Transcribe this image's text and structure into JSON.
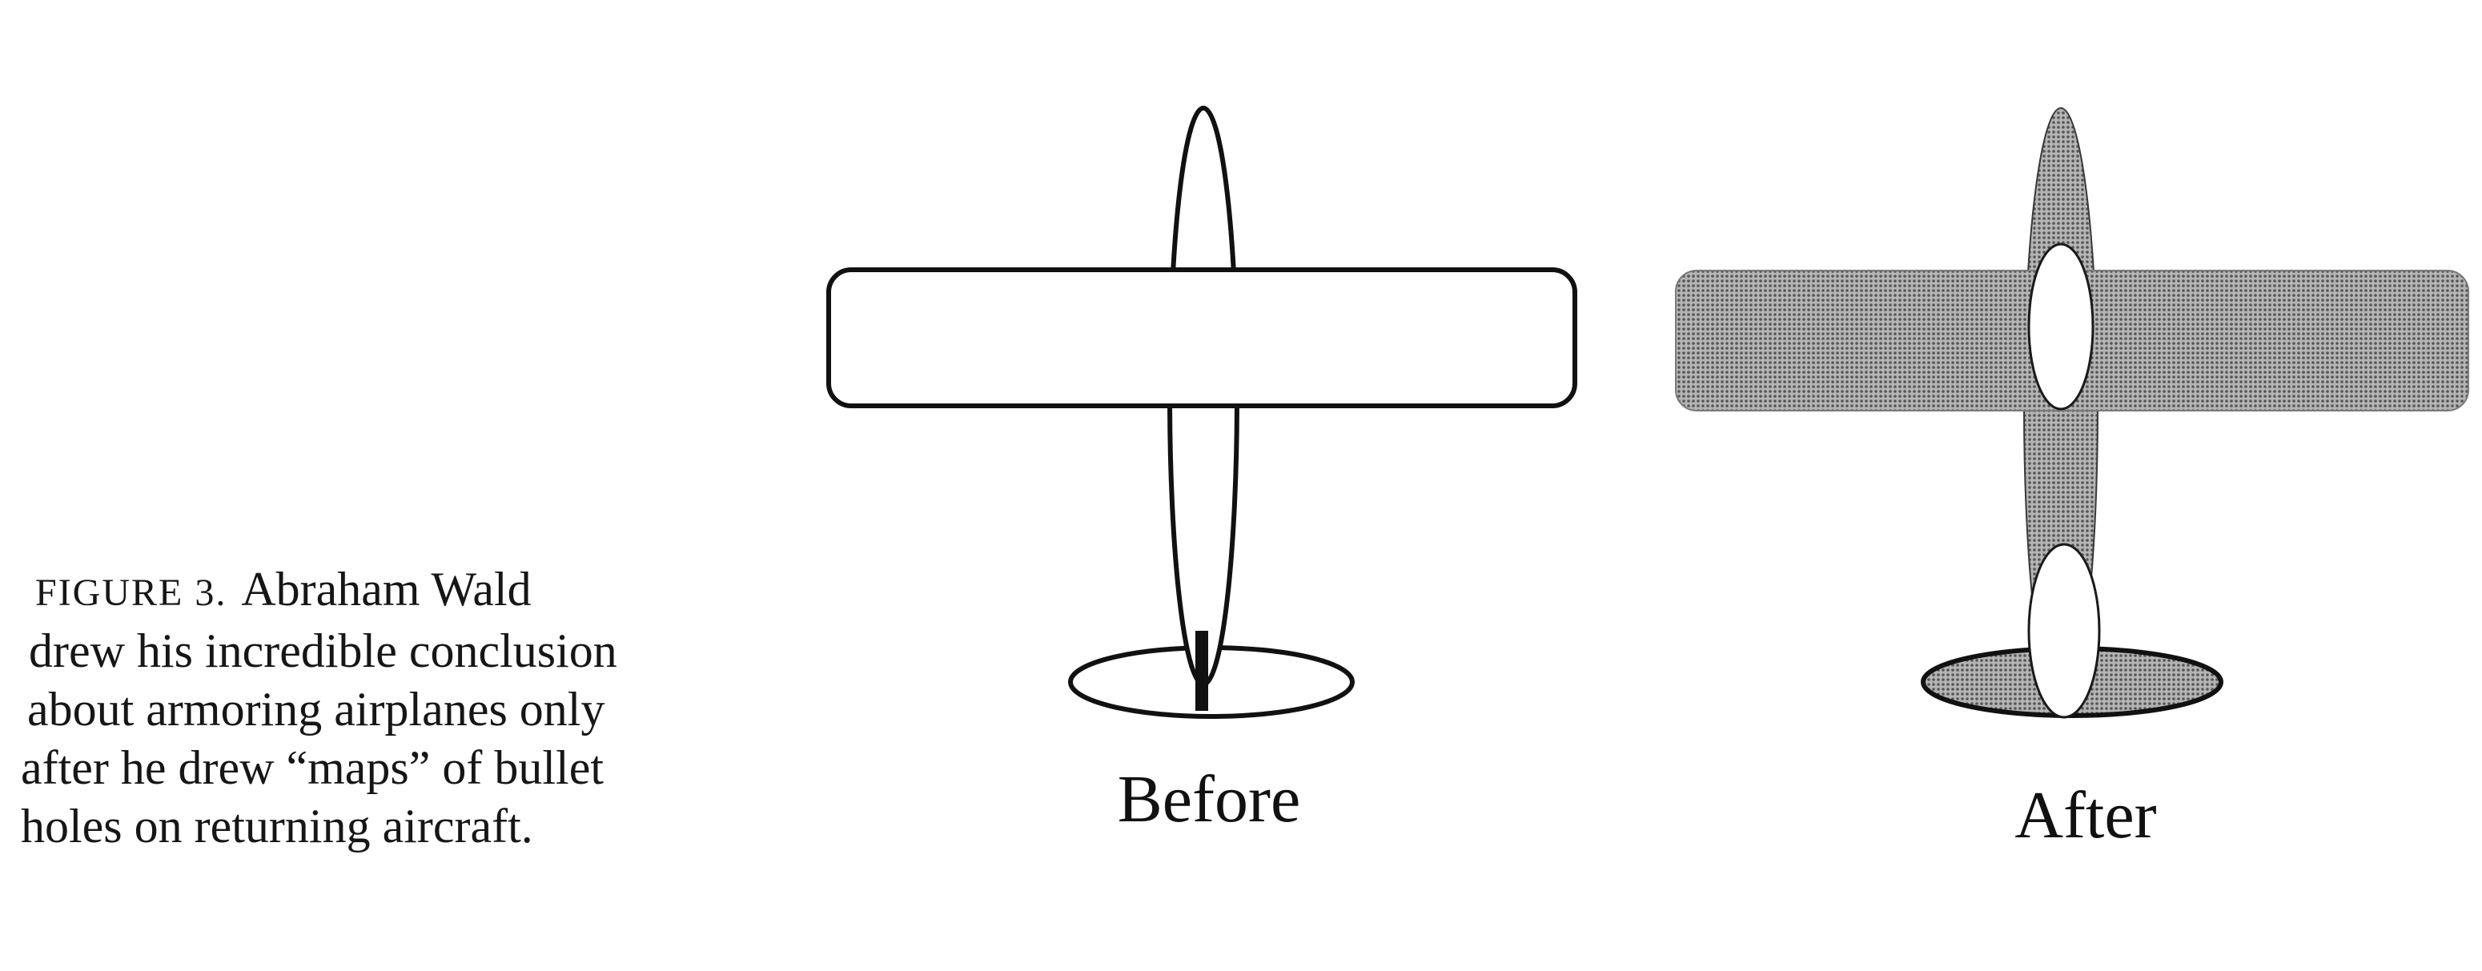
{
  "caption": {
    "figure_label": "FIGURE 3.",
    "lines": [
      "Abraham Wald",
      "drew his incredible conclusion",
      "about armoring airplanes only",
      "after he drew “maps” of bullet",
      "holes on returning aircraft."
    ]
  },
  "panels": {
    "before": {
      "label": "Before"
    },
    "after": {
      "label": "After"
    }
  },
  "colors": {
    "outline": "#111111",
    "shaded_fill": "#8a8a8a",
    "unshaded_fill": "#ffffff"
  }
}
